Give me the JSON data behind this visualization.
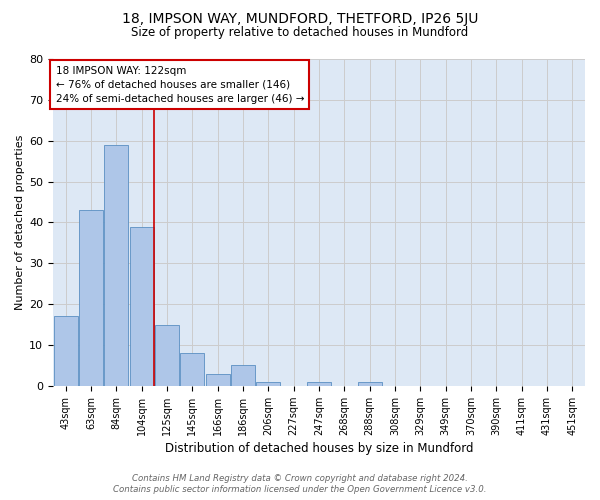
{
  "title": "18, IMPSON WAY, MUNDFORD, THETFORD, IP26 5JU",
  "subtitle": "Size of property relative to detached houses in Mundford",
  "xlabel": "Distribution of detached houses by size in Mundford",
  "ylabel": "Number of detached properties",
  "footer_line1": "Contains HM Land Registry data © Crown copyright and database right 2024.",
  "footer_line2": "Contains public sector information licensed under the Open Government Licence v3.0.",
  "categories": [
    "43sqm",
    "63sqm",
    "84sqm",
    "104sqm",
    "125sqm",
    "145sqm",
    "166sqm",
    "186sqm",
    "206sqm",
    "227sqm",
    "247sqm",
    "268sqm",
    "288sqm",
    "308sqm",
    "329sqm",
    "349sqm",
    "370sqm",
    "390sqm",
    "411sqm",
    "431sqm",
    "451sqm"
  ],
  "values": [
    17,
    43,
    59,
    39,
    15,
    8,
    3,
    5,
    1,
    0,
    1,
    0,
    1,
    0,
    0,
    0,
    0,
    0,
    0,
    0,
    0
  ],
  "bar_color": "#aec6e8",
  "bar_edge_color": "#5a8fc2",
  "vline_color": "#cc0000",
  "annotation_title": "18 IMPSON WAY: 122sqm",
  "annotation_line1": "← 76% of detached houses are smaller (146)",
  "annotation_line2": "24% of semi-detached houses are larger (46) →",
  "annotation_box_color": "#ffffff",
  "annotation_box_edge": "#cc0000",
  "ylim": [
    0,
    80
  ],
  "yticks": [
    0,
    10,
    20,
    30,
    40,
    50,
    60,
    70,
    80
  ],
  "grid_color": "#cccccc",
  "bg_color": "#dde8f5",
  "fig_bg_color": "#ffffff"
}
